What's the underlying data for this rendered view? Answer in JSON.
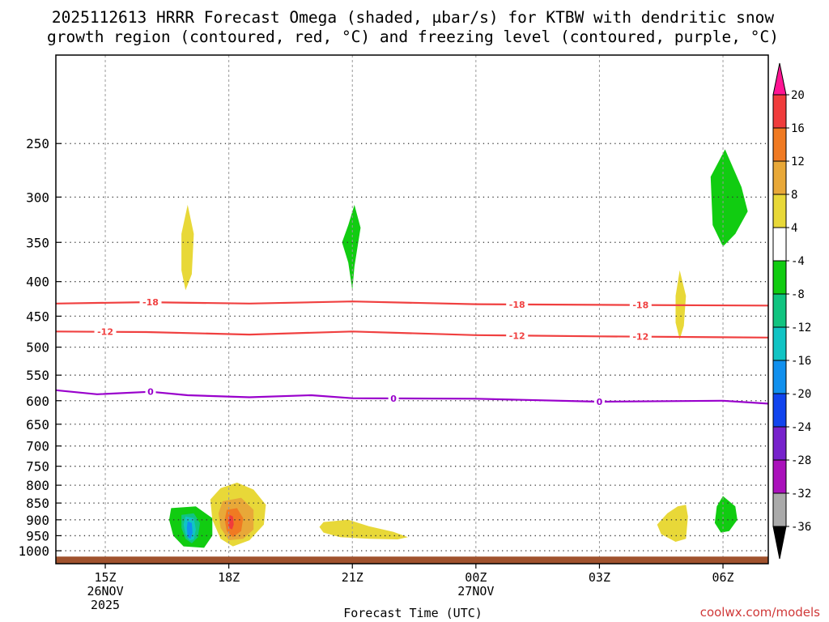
{
  "title": {
    "line1": "2025112613 HRRR Forecast Omega (shaded, μbar/s) for KTBW with dendritic snow",
    "line2": "growth region (contoured, red, °C) and freezing level (contoured, purple, °C)"
  },
  "credit": "coolwx.com/models",
  "chart_data": {
    "type": "heatmap",
    "title": "2025112613 HRRR Forecast Omega (shaded, μbar/s) for KTBW with dendritic snow growth region (contoured, red, °C) and freezing level (contoured, purple, °C)",
    "xlabel": "Forecast Time (UTC)",
    "ylabel": "",
    "x_range_hours": [
      13.8,
      31.1
    ],
    "y_range_hpa": [
      1045,
      185
    ],
    "pressure_levels": [
      250,
      300,
      350,
      400,
      450,
      500,
      550,
      600,
      650,
      700,
      750,
      800,
      850,
      900,
      950,
      1000
    ],
    "x_ticks": [
      {
        "hour": 15,
        "label": "15Z",
        "sub1": "26NOV",
        "sub2": "2025"
      },
      {
        "hour": 18,
        "label": "18Z",
        "sub1": "",
        "sub2": ""
      },
      {
        "hour": 21,
        "label": "21Z",
        "sub1": "",
        "sub2": ""
      },
      {
        "hour": 24,
        "label": "00Z",
        "sub1": "27NOV",
        "sub2": ""
      },
      {
        "hour": 27,
        "label": "03Z",
        "sub1": "",
        "sub2": ""
      },
      {
        "hour": 30,
        "label": "06Z",
        "sub1": "",
        "sub2": ""
      }
    ],
    "grid": true,
    "surface_pressure_hpa": 1020,
    "colorbar": {
      "labels": [
        "20",
        "16",
        "12",
        "8",
        "4",
        "-4",
        "-8",
        "-12",
        "-16",
        "-20",
        "-24",
        "-28",
        "-32",
        "-36"
      ],
      "colors": [
        "#ff1493",
        "#f03c3c",
        "#f07a22",
        "#e8a838",
        "#e8d838",
        "#ffffff",
        "#11cc11",
        "#11c480",
        "#11c4c4",
        "#1190ee",
        "#1144ee",
        "#7722cc",
        "#aa11bb",
        "#aaaaaa",
        "#000000"
      ]
    },
    "contours": [
      {
        "name": "dgz-minus18",
        "value": -18,
        "color": "#f04040",
        "points": [
          [
            13.8,
            431
          ],
          [
            16,
            429
          ],
          [
            18.5,
            431
          ],
          [
            21,
            428
          ],
          [
            24,
            432
          ],
          [
            27,
            433
          ],
          [
            31.1,
            434
          ]
        ],
        "label_hours": [
          16.1,
          25.0,
          28.0
        ],
        "label": "-18"
      },
      {
        "name": "dgz-minus12",
        "value": -12,
        "color": "#f04040",
        "points": [
          [
            13.8,
            474
          ],
          [
            16,
            475
          ],
          [
            18.5,
            479
          ],
          [
            21,
            474
          ],
          [
            24,
            480
          ],
          [
            27,
            482
          ],
          [
            31.1,
            484
          ]
        ],
        "label_hours": [
          15.0,
          25.0,
          28.0
        ],
        "label": "-12"
      },
      {
        "name": "freezing-level",
        "value": 0,
        "color": "#9900cc",
        "points": [
          [
            13.8,
            579
          ],
          [
            14.8,
            587
          ],
          [
            16.1,
            582
          ],
          [
            17,
            589
          ],
          [
            18.5,
            593
          ],
          [
            20,
            589
          ],
          [
            21,
            595
          ],
          [
            24,
            596
          ],
          [
            27,
            602
          ],
          [
            30,
            600
          ],
          [
            31.1,
            606
          ]
        ],
        "label_hours": [
          16.1,
          22.0,
          27.0
        ],
        "label": "0"
      }
    ],
    "omega_regions": [
      {
        "name": "yellow-350hpa-16z",
        "value": 4,
        "color": "#e8d838",
        "points": [
          [
            17.0,
            308
          ],
          [
            17.15,
            340
          ],
          [
            17.1,
            390
          ],
          [
            16.95,
            412
          ],
          [
            16.85,
            385
          ],
          [
            16.85,
            340
          ]
        ]
      },
      {
        "name": "green-350hpa-21z",
        "value": -4,
        "color": "#11cc11",
        "points": [
          [
            21.05,
            308
          ],
          [
            21.2,
            333
          ],
          [
            21.05,
            380
          ],
          [
            21.0,
            412
          ],
          [
            20.9,
            375
          ],
          [
            20.75,
            350
          ],
          [
            20.9,
            330
          ]
        ]
      },
      {
        "name": "green-300hpa-06z",
        "value": -4,
        "color": "#11cc11",
        "points": [
          [
            30.05,
            255
          ],
          [
            30.45,
            290
          ],
          [
            30.6,
            315
          ],
          [
            30.3,
            340
          ],
          [
            30.0,
            355
          ],
          [
            29.75,
            330
          ],
          [
            29.7,
            280
          ]
        ]
      },
      {
        "name": "yellow-430hpa-05z",
        "value": 4,
        "color": "#e8d838",
        "points": [
          [
            28.95,
            385
          ],
          [
            29.1,
            420
          ],
          [
            29.05,
            465
          ],
          [
            28.95,
            487
          ],
          [
            28.85,
            460
          ],
          [
            28.85,
            420
          ]
        ]
      },
      {
        "name": "green-900hpa-1630z",
        "value": -4,
        "color": "#11cc11",
        "points": [
          [
            16.6,
            865
          ],
          [
            17.2,
            860
          ],
          [
            17.6,
            895
          ],
          [
            17.6,
            950
          ],
          [
            17.4,
            990
          ],
          [
            16.9,
            985
          ],
          [
            16.65,
            950
          ],
          [
            16.55,
            900
          ]
        ]
      },
      {
        "name": "teal-900hpa-1630z",
        "value": -8,
        "color": "#11c480",
        "points": [
          [
            16.85,
            885
          ],
          [
            17.15,
            880
          ],
          [
            17.3,
            910
          ],
          [
            17.25,
            955
          ],
          [
            17.1,
            975
          ],
          [
            16.95,
            960
          ],
          [
            16.85,
            925
          ]
        ]
      },
      {
        "name": "cyan-900hpa-1630z",
        "value": -12,
        "color": "#11c4c4",
        "points": [
          [
            16.95,
            890
          ],
          [
            17.15,
            895
          ],
          [
            17.2,
            930
          ],
          [
            17.15,
            962
          ],
          [
            17.05,
            965
          ],
          [
            16.95,
            945
          ],
          [
            16.9,
            915
          ]
        ]
      },
      {
        "name": "blue-900hpa-1630z",
        "value": -16,
        "color": "#1190ee",
        "points": [
          [
            17.0,
            905
          ],
          [
            17.1,
            910
          ],
          [
            17.12,
            940
          ],
          [
            17.07,
            960
          ],
          [
            17.0,
            955
          ],
          [
            16.98,
            925
          ]
        ]
      },
      {
        "name": "yellow-880hpa-18z",
        "value": 4,
        "color": "#e8d838",
        "points": [
          [
            17.8,
            808
          ],
          [
            18.2,
            793
          ],
          [
            18.6,
            812
          ],
          [
            18.9,
            855
          ],
          [
            18.85,
            915
          ],
          [
            18.5,
            965
          ],
          [
            18.1,
            985
          ],
          [
            17.8,
            960
          ],
          [
            17.6,
            900
          ],
          [
            17.55,
            840
          ]
        ]
      },
      {
        "name": "gold-880hpa-18z",
        "value": 8,
        "color": "#e8a838",
        "points": [
          [
            17.85,
            845
          ],
          [
            18.3,
            835
          ],
          [
            18.6,
            870
          ],
          [
            18.6,
            930
          ],
          [
            18.35,
            960
          ],
          [
            18.0,
            965
          ],
          [
            17.8,
            925
          ],
          [
            17.75,
            880
          ]
        ]
      },
      {
        "name": "orange-880hpa-18z",
        "value": 12,
        "color": "#f07a22",
        "points": [
          [
            17.95,
            870
          ],
          [
            18.2,
            865
          ],
          [
            18.35,
            895
          ],
          [
            18.3,
            935
          ],
          [
            18.1,
            955
          ],
          [
            17.95,
            935
          ],
          [
            17.9,
            900
          ]
        ]
      },
      {
        "name": "red-880hpa-18z",
        "value": 16,
        "color": "#f03c3c",
        "points": [
          [
            18.02,
            885
          ],
          [
            18.1,
            890
          ],
          [
            18.12,
            915
          ],
          [
            18.08,
            930
          ],
          [
            18.0,
            925
          ],
          [
            17.98,
            905
          ]
        ]
      },
      {
        "name": "yellow-930hpa-21z",
        "value": 4,
        "color": "#e8d838",
        "points": [
          [
            20.3,
            907
          ],
          [
            20.9,
            900
          ],
          [
            21.4,
            920
          ],
          [
            22.0,
            938
          ],
          [
            22.35,
            955
          ],
          [
            22.1,
            962
          ],
          [
            21.4,
            960
          ],
          [
            20.7,
            955
          ],
          [
            20.3,
            940
          ],
          [
            20.2,
            922
          ]
        ]
      },
      {
        "name": "yellow-900hpa-05z",
        "value": 4,
        "color": "#e8d838",
        "points": [
          [
            28.9,
            860
          ],
          [
            29.1,
            855
          ],
          [
            29.15,
            890
          ],
          [
            29.1,
            960
          ],
          [
            28.85,
            970
          ],
          [
            28.5,
            945
          ],
          [
            28.4,
            915
          ],
          [
            28.65,
            880
          ]
        ]
      },
      {
        "name": "green-880hpa-06z",
        "value": -4,
        "color": "#11cc11",
        "points": [
          [
            30.0,
            830
          ],
          [
            30.3,
            860
          ],
          [
            30.35,
            900
          ],
          [
            30.15,
            935
          ],
          [
            29.95,
            940
          ],
          [
            29.8,
            910
          ],
          [
            29.85,
            860
          ]
        ]
      }
    ]
  }
}
